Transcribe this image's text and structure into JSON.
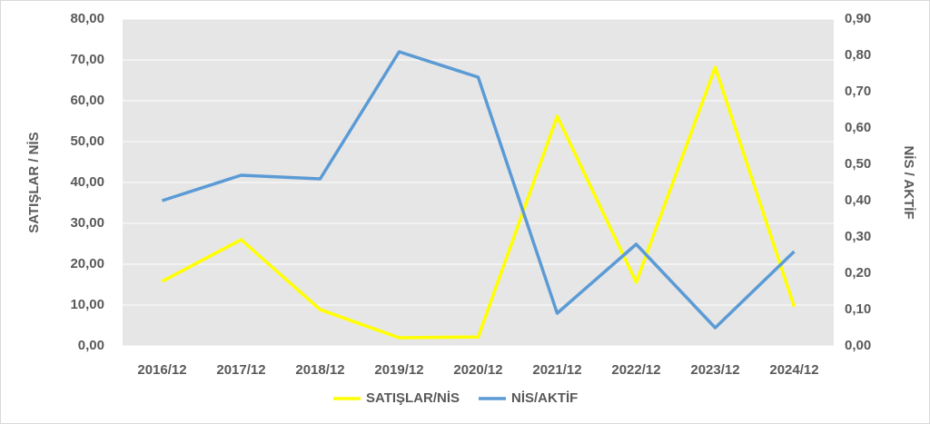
{
  "chart_data": {
    "type": "line",
    "categories": [
      "2016/12",
      "2017/12",
      "2018/12",
      "2019/12",
      "2020/12",
      "2021/12",
      "2022/12",
      "2023/12",
      "2024/12"
    ],
    "y_label": "SATIŞLAR / NİS",
    "y2_label": "NİS / AKTİF",
    "ylim": [
      0,
      80
    ],
    "yticks": [
      {
        "value": 0,
        "label": "0,00"
      },
      {
        "value": 10,
        "label": "10,00"
      },
      {
        "value": 20,
        "label": "20,00"
      },
      {
        "value": 30,
        "label": "30,00"
      },
      {
        "value": 40,
        "label": "40,00"
      },
      {
        "value": 50,
        "label": "50,00"
      },
      {
        "value": 60,
        "label": "60,00"
      },
      {
        "value": 70,
        "label": "70,00"
      },
      {
        "value": 80,
        "label": "80,00"
      }
    ],
    "y2lim": [
      0,
      0.9
    ],
    "y2ticks": [
      {
        "value": 0,
        "label": "0,00"
      },
      {
        "value": 0.1,
        "label": "0,10"
      },
      {
        "value": 0.2,
        "label": "0,20"
      },
      {
        "value": 0.3,
        "label": "0,30"
      },
      {
        "value": 0.4,
        "label": "0,40"
      },
      {
        "value": 0.5,
        "label": "0,50"
      },
      {
        "value": 0.6,
        "label": "0,60"
      },
      {
        "value": 0.7,
        "label": "0,70"
      },
      {
        "value": 0.8,
        "label": "0,80"
      },
      {
        "value": 0.9,
        "label": "0,90"
      }
    ],
    "grid": true,
    "legend": "bottom",
    "series": [
      {
        "name": "SATIŞLAR/NİS",
        "color": "#ffff00",
        "values": [
          15.8,
          26.0,
          8.9,
          2.0,
          2.2,
          56.2,
          15.6,
          68.2,
          9.6
        ]
      },
      {
        "name": "NİS/AKTİF",
        "color": "#5b9bd5",
        "axis": "y2",
        "values": [
          0.4,
          0.47,
          0.46,
          0.81,
          0.74,
          0.09,
          0.28,
          0.05,
          0.26
        ]
      }
    ]
  }
}
